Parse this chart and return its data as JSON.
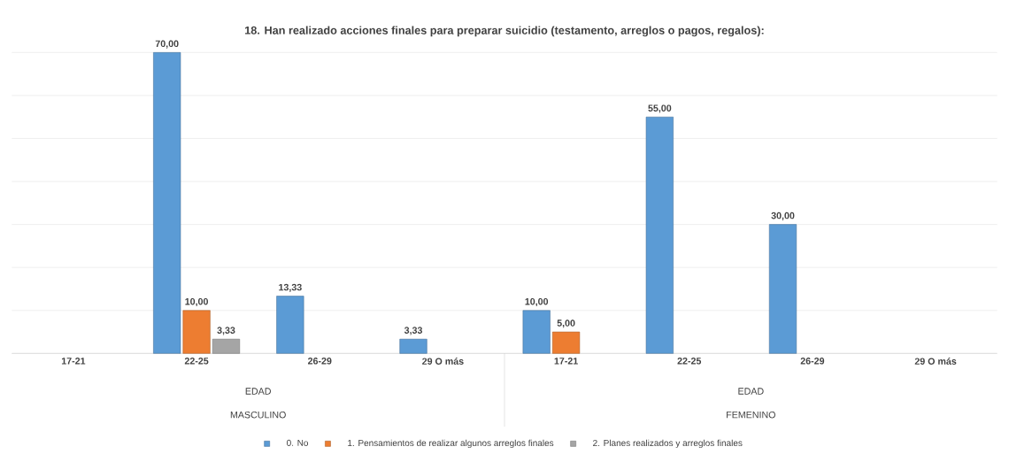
{
  "chart_data": {
    "type": "bar",
    "title": "18. Han realizado acciones finales para preparar suicidio (testamento, arreglos o pagos, regalos):",
    "categories": [
      "17-21",
      "22-25",
      "26-29",
      "29 O más",
      "17-21",
      "22-25",
      "26-29",
      "29 O más"
    ],
    "series": [
      {
        "name": "0. No",
        "color": "#5b9bd5",
        "values": [
          null,
          70,
          13.33,
          3.33,
          10,
          55,
          30,
          null
        ],
        "value_labels": [
          null,
          "70,00",
          "13,33",
          "3,33",
          "10,00",
          "55,00",
          "30,00",
          null
        ]
      },
      {
        "name": "1. Pensamientos de realizar algunos arreglos finales",
        "color": "#ed7d31",
        "values": [
          null,
          10,
          null,
          null,
          5,
          null,
          null,
          null
        ],
        "value_labels": [
          null,
          "10,00",
          null,
          null,
          "5,00",
          null,
          null,
          null
        ]
      },
      {
        "name": "2. Planes realizados y arreglos finales",
        "color": "#a5a5a5",
        "values": [
          null,
          3.33,
          null,
          null,
          null,
          null,
          null,
          null
        ],
        "value_labels": [
          null,
          "3,33",
          null,
          null,
          null,
          null,
          null,
          null
        ]
      }
    ],
    "annotations": [
      "EDAD",
      "MASCULINO",
      "EDAD",
      "FEMENINO"
    ],
    "ylim": [
      0,
      70
    ],
    "grid": "y",
    "legend": "bottom",
    "tick_labels": "x"
  }
}
